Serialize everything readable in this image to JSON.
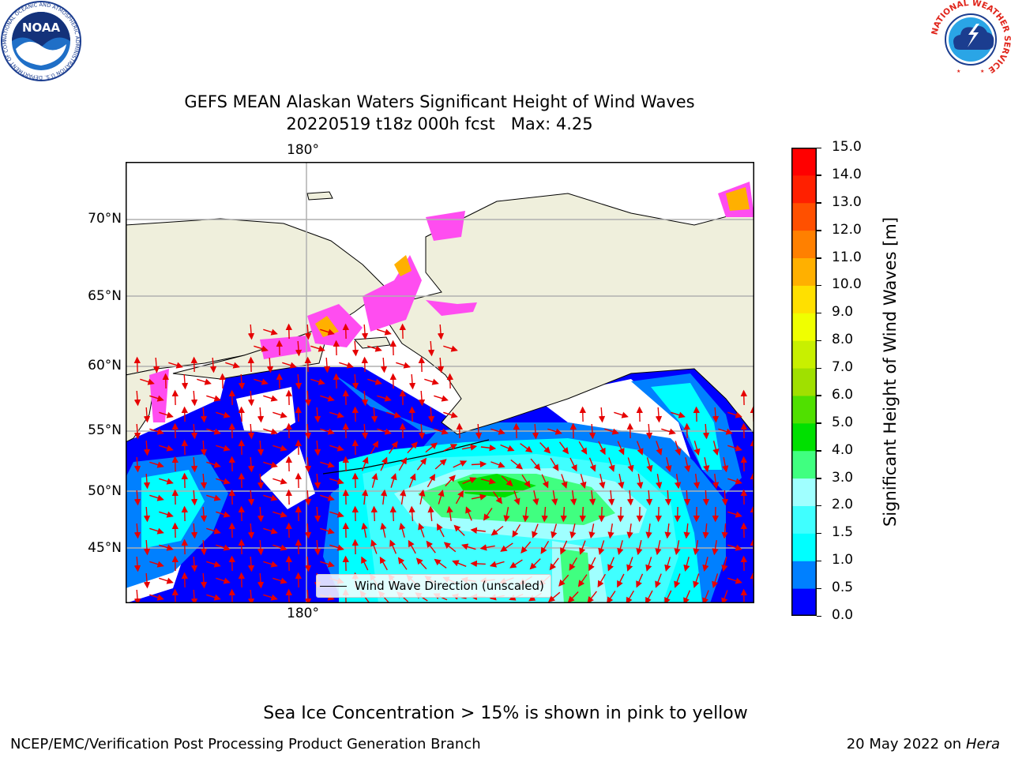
{
  "title": "GEFS MEAN Alaskan Waters Significant Height of Wind Waves",
  "subtitle": "20220519 t18z 000h fcst   Max: 4.25",
  "map": {
    "lat_labels": [
      "70°N",
      "65°N",
      "60°N",
      "55°N",
      "50°N",
      "45°N"
    ],
    "lon_label_top": "180°",
    "lon_label_bottom": "180°",
    "land_color": "#efefdc",
    "legend_entry": "Wind Wave Direction (unscaled)",
    "arrow_color": "#e60000"
  },
  "colorbar": {
    "label": "Significant Height of Wind Waves [m]",
    "ticks": [
      "15.0",
      "14.0",
      "13.0",
      "12.0",
      "11.0",
      "10.0",
      "9.0",
      "8.0",
      "7.0",
      "6.0",
      "5.0",
      "4.0",
      "3.0",
      "2.0",
      "1.5",
      "1.0",
      "0.5",
      "0.0"
    ],
    "colors": [
      "#0000ff",
      "#0080ff",
      "#00ffff",
      "#40ffff",
      "#a0ffff",
      "#40ff80",
      "#00e000",
      "#50e000",
      "#a0e000",
      "#c8f000",
      "#f0ff00",
      "#ffe000",
      "#ffb000",
      "#ff8000",
      "#ff5000",
      "#ff2000",
      "#ff0000"
    ]
  },
  "ice_note": "Sea Ice Concentration > 15% is shown in pink to yellow",
  "footer": {
    "credit": "NCEP/EMC/Verification Post Processing Product Generation Branch",
    "date": "20 May 2022 on",
    "machine": "Hera"
  },
  "logos": {
    "noaa": "NOAA",
    "noaa_ring": "NATIONAL OCEANIC AND ATMOSPHERIC ADMINISTRATION  U.S. DEPARTMENT OF COMMERCE",
    "nws_ring": "NATIONAL WEATHER SERVICE"
  }
}
